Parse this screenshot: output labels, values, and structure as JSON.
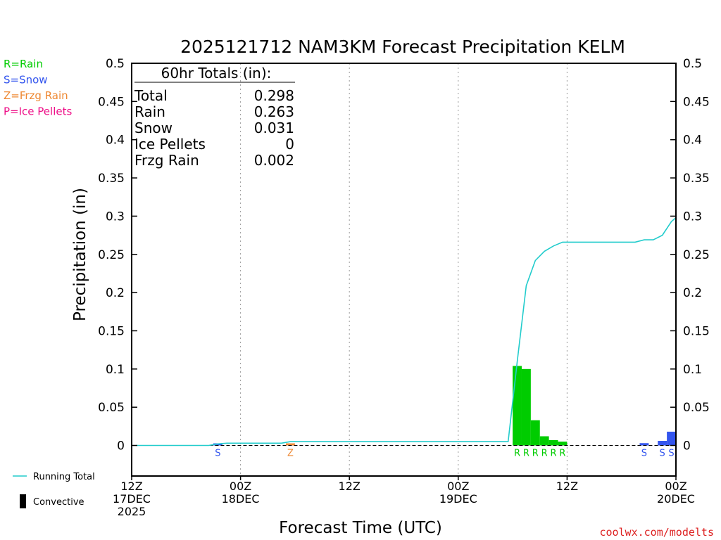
{
  "chart_data": {
    "type": "bar",
    "title": "2025121712 NAM3KM Forecast Precipitation KELM",
    "xlabel": "Forecast Time (UTC)",
    "ylabel": "Precipitation (in)",
    "ylim": [
      -0.04,
      0.5
    ],
    "xlim_hours": [
      0,
      60
    ],
    "y_ticks": [
      {
        "value": 0,
        "label": "0"
      },
      {
        "value": 0.05,
        "label": "0.05"
      },
      {
        "value": 0.1,
        "label": "0.1"
      },
      {
        "value": 0.15,
        "label": "0.15"
      },
      {
        "value": 0.2,
        "label": "0.2"
      },
      {
        "value": 0.25,
        "label": "0.25"
      },
      {
        "value": 0.3,
        "label": "0.3"
      },
      {
        "value": 0.35,
        "label": "0.35"
      },
      {
        "value": 0.4,
        "label": "0.4"
      },
      {
        "value": 0.45,
        "label": "0.45"
      },
      {
        "value": 0.5,
        "label": "0.5"
      }
    ],
    "x_ticks": [
      {
        "hour": 0,
        "lines": [
          "12Z",
          "17DEC",
          "2025"
        ]
      },
      {
        "hour": 12,
        "lines": [
          "00Z",
          "18DEC"
        ]
      },
      {
        "hour": 24,
        "lines": [
          "12Z"
        ]
      },
      {
        "hour": 36,
        "lines": [
          "00Z",
          "19DEC"
        ]
      },
      {
        "hour": 48,
        "lines": [
          "12Z"
        ]
      },
      {
        "hour": 60,
        "lines": [
          "00Z",
          "20DEC"
        ]
      }
    ],
    "grid_hours": [
      12,
      24,
      36,
      48
    ],
    "legend_types": [
      {
        "label": "R=Rain",
        "color": "#00cc00"
      },
      {
        "label": "S=Snow",
        "color": "#3355ee"
      },
      {
        "label": "Z=Frzg Rain",
        "color": "#ee8833"
      },
      {
        "label": "P=Ice Pellets",
        "color": "#ee1188"
      }
    ],
    "totals": {
      "header": "60hr Totals (in):",
      "rows": [
        {
          "label": "Total",
          "value": "0.298"
        },
        {
          "label": "Rain",
          "value": "0.263"
        },
        {
          "label": "Snow",
          "value": "0.031"
        },
        {
          "label": "Ice Pellets",
          "value": "0"
        },
        {
          "label": "Frzg Rain",
          "value": "0.002"
        }
      ]
    },
    "bars": [
      {
        "hour": 9.5,
        "value": 0.002,
        "type": "S",
        "color": "#3355ee"
      },
      {
        "hour": 17.5,
        "value": 0.002,
        "type": "Z",
        "color": "#ee8833"
      },
      {
        "hour": 42.5,
        "value": 0.104,
        "type": "R",
        "color": "#00cc00"
      },
      {
        "hour": 43.5,
        "value": 0.1,
        "type": "R",
        "color": "#00cc00"
      },
      {
        "hour": 44.5,
        "value": 0.033,
        "type": "R",
        "color": "#00cc00"
      },
      {
        "hour": 45.5,
        "value": 0.012,
        "type": "R",
        "color": "#00cc00"
      },
      {
        "hour": 46.5,
        "value": 0.007,
        "type": "R",
        "color": "#00cc00"
      },
      {
        "hour": 47.5,
        "value": 0.005,
        "type": "R",
        "color": "#00cc00"
      },
      {
        "hour": 56.5,
        "value": 0.003,
        "type": "S",
        "color": "#3355ee"
      },
      {
        "hour": 58.5,
        "value": 0.006,
        "type": "S",
        "color": "#3355ee"
      },
      {
        "hour": 59.5,
        "value": 0.018,
        "type": "S",
        "color": "#3355ee"
      }
    ],
    "running_total": {
      "name": "Running Total",
      "color": "#22cccc",
      "points": [
        [
          0.5,
          0.0
        ],
        [
          8.5,
          0.0
        ],
        [
          9.5,
          0.002
        ],
        [
          10.5,
          0.003
        ],
        [
          16.5,
          0.003
        ],
        [
          17.5,
          0.005
        ],
        [
          41.5,
          0.005
        ],
        [
          42.5,
          0.109
        ],
        [
          43.5,
          0.209
        ],
        [
          44.5,
          0.242
        ],
        [
          45.5,
          0.254
        ],
        [
          46.5,
          0.261
        ],
        [
          47.5,
          0.266
        ],
        [
          55.5,
          0.266
        ],
        [
          56.5,
          0.269
        ],
        [
          57.5,
          0.269
        ],
        [
          58.5,
          0.275
        ],
        [
          59.5,
          0.293
        ],
        [
          60,
          0.298
        ]
      ]
    },
    "legend_lines": [
      {
        "label": "Running Total",
        "kind": "line",
        "color": "#22cccc"
      },
      {
        "label": "Convective",
        "kind": "box",
        "color": "#000000"
      }
    ],
    "credit": "coolwx.com/modelts"
  }
}
